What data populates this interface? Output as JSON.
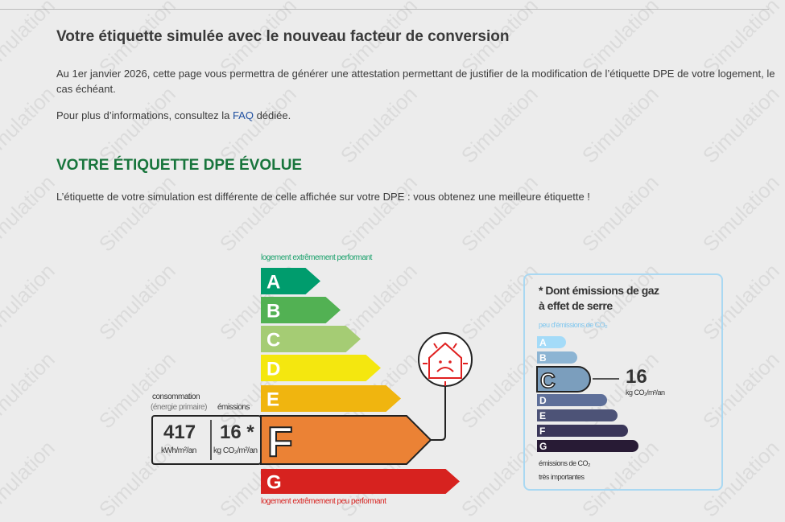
{
  "title": "Votre étiquette simulée avec le nouveau facteur de conversion",
  "intro": "Au 1er janvier 2026, cette page vous permettra de générer une attestation permettant de justifier de la modification de l’étiquette DPE de votre logement, le cas échéant.",
  "info_prefix": "Pour plus d’informations, consultez la ",
  "faq_link": "FAQ",
  "info_suffix": " dédiée.",
  "section_heading": "VOTRE ÉTIQUETTE DPE ÉVOLUE",
  "section_text": "L’étiquette de votre simulation est différente de celle affichée sur votre DPE : vous obtenez une meilleure étiquette !",
  "watermark": "Simulation",
  "dpe": {
    "top_label": "logement extrêmement performant",
    "bottom_label": "logement extrêmement peu performant",
    "classes": [
      {
        "letter": "A",
        "color": "#009c6d"
      },
      {
        "letter": "B",
        "color": "#52b153"
      },
      {
        "letter": "C",
        "color": "#a5cc74"
      },
      {
        "letter": "D",
        "color": "#f4e70f"
      },
      {
        "letter": "E",
        "color": "#f0b50f"
      },
      {
        "letter": "F",
        "color": "#eb8235"
      },
      {
        "letter": "G",
        "color": "#d7221f"
      }
    ],
    "current_class": "F",
    "consumption_label": "consommation",
    "consumption_sub": "(énergie primaire)",
    "emissions_label": "émissions",
    "consumption_value": "417",
    "consumption_unit": "kWh/m²/an",
    "emissions_value": "16 *",
    "emissions_unit": "kg CO₂/m²/an",
    "icon": "house-thermal-loss-sad-icon"
  },
  "ges": {
    "title_line1": "* Dont émissions de gaz",
    "title_line2": "à effet de serre",
    "top_label": "peu d'émissions de CO₂",
    "bottom_line1": "émissions de CO₂",
    "bottom_line2": "très importantes",
    "classes": [
      {
        "letter": "A",
        "color": "#a4dbf8"
      },
      {
        "letter": "B",
        "color": "#8cb4d3"
      },
      {
        "letter": "C",
        "color": "#7b9ebd"
      },
      {
        "letter": "D",
        "color": "#5e6f99"
      },
      {
        "letter": "E",
        "color": "#4d5377"
      },
      {
        "letter": "F",
        "color": "#3a3659"
      },
      {
        "letter": "G",
        "color": "#281b35"
      }
    ],
    "current_class": "C",
    "value": "16",
    "unit": "kg CO₂/m²/an"
  }
}
